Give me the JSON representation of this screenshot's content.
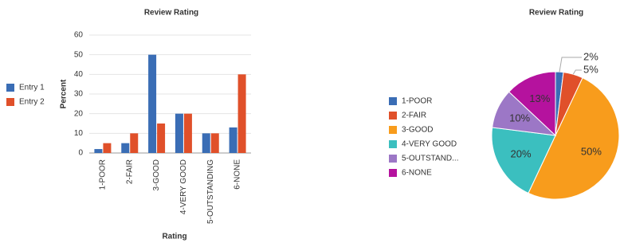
{
  "chart_data": [
    {
      "type": "bar",
      "title": "Review Rating",
      "x_label": "Rating",
      "y_label": "Percent",
      "categories": [
        "1-POOR",
        "2-FAIR",
        "3-GOOD",
        "4-VERY GOOD",
        "5-OUTSTANDING",
        "6-NONE"
      ],
      "series": [
        {
          "name": "Entry 1",
          "color": "#3a6db5",
          "values": [
            2,
            5,
            50,
            20,
            10,
            13
          ]
        },
        {
          "name": "Entry 2",
          "color": "#e0502a",
          "values": [
            5,
            10,
            15,
            20,
            10,
            40
          ]
        }
      ],
      "ylim": [
        0,
        60
      ],
      "yticks": [
        0,
        10,
        20,
        30,
        40,
        50,
        60
      ],
      "grid": true,
      "legend": "left"
    },
    {
      "type": "pie",
      "title": "Review Rating",
      "categories": [
        "1-POOR",
        "2-FAIR",
        "3-GOOD",
        "4-VERY GOOD",
        "5-OUTSTAND...",
        "6-NONE"
      ],
      "values": [
        2,
        5,
        50,
        20,
        10,
        13
      ],
      "value_labels": [
        "2%",
        "5%",
        "50%",
        "20%",
        "10%",
        "13%"
      ],
      "colors": [
        "#3a6db5",
        "#e0502a",
        "#f89c1c",
        "#3bbfbf",
        "#9c77c6",
        "#b5129e"
      ],
      "legend": "left"
    }
  ]
}
